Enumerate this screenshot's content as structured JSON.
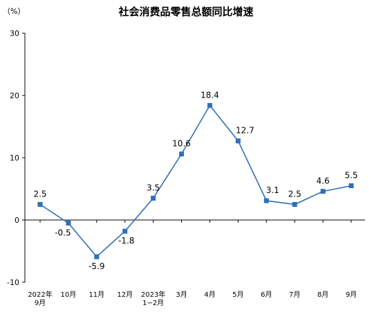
{
  "chart_data": {
    "type": "line",
    "title": "社会消费品零售总额同比增速",
    "unit": "（%）",
    "ylim": [
      -10,
      30
    ],
    "yticks": [
      "-10",
      "0",
      "10",
      "20",
      "30"
    ],
    "grid": false,
    "legend": "none",
    "color": "#2f6fb7",
    "categories": [
      [
        "2022年",
        "9月"
      ],
      [
        "10月"
      ],
      [
        "11月"
      ],
      [
        "12月"
      ],
      [
        "2023年",
        "1−2月"
      ],
      [
        "3月"
      ],
      [
        "4月"
      ],
      [
        "5月"
      ],
      [
        "6月"
      ],
      [
        "7月"
      ],
      [
        "8月"
      ],
      [
        "9月"
      ]
    ],
    "values": [
      2.5,
      -0.5,
      -5.9,
      -1.8,
      3.5,
      10.6,
      18.4,
      12.7,
      3.1,
      2.5,
      4.6,
      5.5
    ],
    "labels": [
      "2.5",
      "-0.5",
      "-5.9",
      "-1.8",
      "3.5",
      "10.6",
      "18.4",
      "12.7",
      "3.1",
      "2.5",
      "4.6",
      "5.5"
    ]
  }
}
